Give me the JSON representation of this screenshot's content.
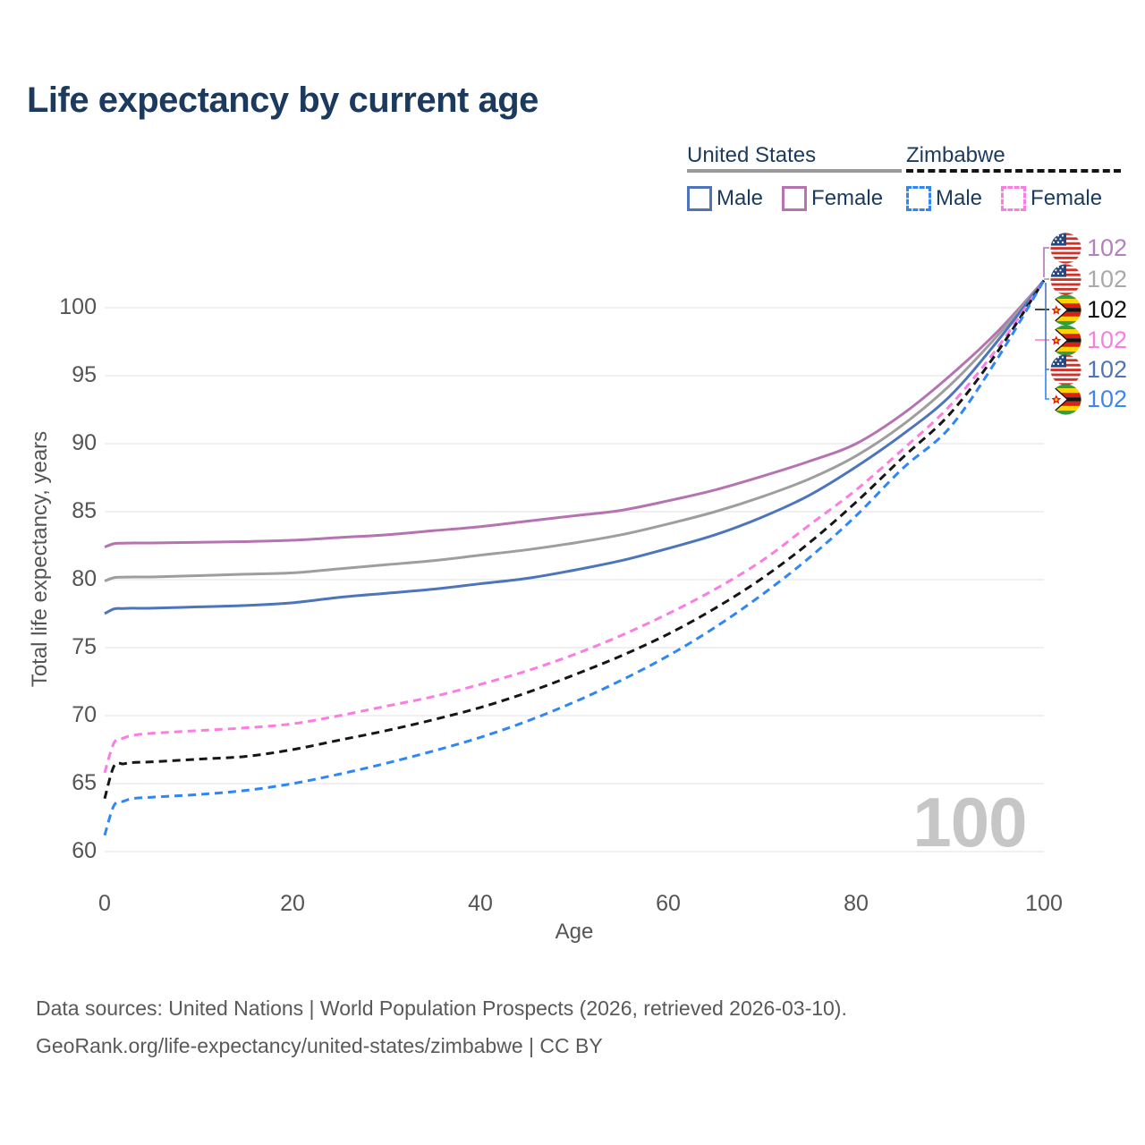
{
  "title": "Life expectancy by current age",
  "legend": {
    "us": {
      "label": "United States",
      "male": "Male",
      "female": "Female"
    },
    "zw": {
      "label": "Zimbabwe",
      "male": "Male",
      "female": "Female"
    }
  },
  "watermark": "100",
  "footer": {
    "line1": "Data sources: United Nations | World Population Prospects (2026, retrieved 2026-03-10).",
    "line2": "GeoRank.org/life-expectancy/united-states/zimbabwe | CC BY"
  },
  "chart_data": {
    "type": "line",
    "title": "Life expectancy by current age",
    "xlabel": "Age",
    "ylabel": "Total life expectancy, years",
    "xlim": [
      0,
      100
    ],
    "ylim": [
      60,
      102
    ],
    "x_ticks": [
      0,
      20,
      40,
      60,
      80,
      100
    ],
    "y_ticks": [
      60,
      65,
      70,
      75,
      80,
      85,
      90,
      95,
      100
    ],
    "grid": "horizontal-only",
    "legend_position": "top-right",
    "hover_age": "100",
    "x": [
      0,
      1,
      2,
      3,
      5,
      10,
      15,
      20,
      25,
      30,
      35,
      40,
      45,
      50,
      55,
      60,
      65,
      70,
      75,
      80,
      85,
      90,
      95,
      100
    ],
    "series": [
      {
        "name": "United States — Female",
        "country": "United States",
        "sex": "Female",
        "color": "#b573b2",
        "dashed": false,
        "end_value": 102,
        "values": [
          82.4,
          82.65,
          82.68,
          82.7,
          82.7,
          82.75,
          82.8,
          82.9,
          83.1,
          83.3,
          83.6,
          83.9,
          84.3,
          84.7,
          85.1,
          85.8,
          86.6,
          87.6,
          88.7,
          90.0,
          92.2,
          95.0,
          98.2,
          102
        ]
      },
      {
        "name": "United States — Total",
        "country": "United States",
        "sex": "Total",
        "color": "#9e9e9e",
        "dashed": false,
        "end_value": 102,
        "values": [
          79.9,
          80.15,
          80.18,
          80.2,
          80.2,
          80.3,
          80.4,
          80.5,
          80.8,
          81.1,
          81.4,
          81.8,
          82.2,
          82.7,
          83.3,
          84.1,
          85.0,
          86.1,
          87.4,
          89.1,
          91.4,
          94.3,
          97.9,
          102
        ]
      },
      {
        "name": "United States — Male",
        "country": "United States",
        "sex": "Male",
        "color": "#4d75bb",
        "dashed": false,
        "end_value": 102,
        "values": [
          77.5,
          77.85,
          77.88,
          77.9,
          77.9,
          78.0,
          78.1,
          78.3,
          78.7,
          79.0,
          79.3,
          79.7,
          80.1,
          80.7,
          81.4,
          82.3,
          83.3,
          84.6,
          86.2,
          88.3,
          90.7,
          93.5,
          97.5,
          102
        ]
      },
      {
        "name": "Zimbabwe — Female",
        "country": "Zimbabwe",
        "sex": "Female",
        "color": "#fb7de2",
        "dashed": true,
        "end_value": 102,
        "values": [
          65.8,
          68.0,
          68.35,
          68.55,
          68.7,
          68.9,
          69.1,
          69.4,
          70.0,
          70.7,
          71.4,
          72.3,
          73.3,
          74.5,
          75.9,
          77.5,
          79.3,
          81.4,
          84.0,
          86.6,
          89.6,
          92.8,
          97.0,
          102
        ]
      },
      {
        "name": "Zimbabwe — Total",
        "country": "Zimbabwe",
        "sex": "Total",
        "color": "#161616",
        "dashed": true,
        "end_value": 102,
        "values": [
          63.9,
          66.3,
          66.45,
          66.55,
          66.6,
          66.8,
          67.0,
          67.5,
          68.2,
          68.9,
          69.7,
          70.6,
          71.7,
          73.0,
          74.4,
          76.0,
          77.9,
          80.1,
          82.7,
          85.7,
          89.0,
          92.2,
          96.7,
          102
        ]
      },
      {
        "name": "Zimbabwe — Male",
        "country": "Zimbabwe",
        "sex": "Male",
        "color": "#2e86f7",
        "dashed": true,
        "end_value": 102,
        "values": [
          61.2,
          63.4,
          63.7,
          63.9,
          64.0,
          64.2,
          64.5,
          65.0,
          65.7,
          66.5,
          67.4,
          68.4,
          69.6,
          71.0,
          72.6,
          74.4,
          76.5,
          78.9,
          81.6,
          84.7,
          88.2,
          91.2,
          96.2,
          102
        ]
      }
    ],
    "end_labels": [
      {
        "flag": "us",
        "series": 0,
        "value": "102",
        "label_color": "#b57ec0"
      },
      {
        "flag": "us",
        "series": 1,
        "value": "102",
        "label_color": "#a9a9a9"
      },
      {
        "flag": "zw",
        "series": 4,
        "value": "102",
        "label_color": "#111111"
      },
      {
        "flag": "zw",
        "series": 3,
        "value": "102",
        "label_color": "#fb7de2"
      },
      {
        "flag": "us",
        "series": 2,
        "value": "102",
        "label_color": "#4d75bb"
      },
      {
        "flag": "zw",
        "series": 5,
        "value": "102",
        "label_color": "#3d85f0"
      }
    ]
  }
}
